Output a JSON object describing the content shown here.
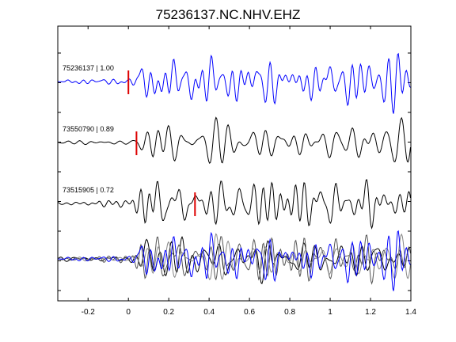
{
  "chart_data": {
    "type": "line",
    "title": "75236137.NC.NHV.EHZ",
    "xlabel": "",
    "ylabel": "",
    "xlim": [
      -0.35,
      1.4
    ],
    "x_ticks": [
      -0.2,
      0,
      0.2,
      0.4,
      0.6,
      0.8,
      1,
      1.2,
      1.4
    ],
    "x_tick_labels": [
      "-0.2",
      "0",
      "0.2",
      "0.4",
      "0.6",
      "0.8",
      "1",
      "1.2",
      "1.4"
    ],
    "grid": false,
    "traces": [
      {
        "label": "75236137 | 1.00",
        "color": "#0000ff",
        "pick_time": 0.0,
        "seed": 1,
        "amplitude": 1.0
      },
      {
        "label": "73550790 | 0.89",
        "color": "#000000",
        "pick_time": 0.04,
        "seed": 2,
        "amplitude": 1.0
      },
      {
        "label": "73515905 | 0.72",
        "color": "#000000",
        "pick_time": 0.33,
        "seed": 3,
        "amplitude": 1.0
      }
    ],
    "stack": {
      "label": "",
      "colors": [
        "#000000",
        "#555555",
        "#888888",
        "#0000ff"
      ]
    },
    "pick_color": "#dd0000"
  }
}
